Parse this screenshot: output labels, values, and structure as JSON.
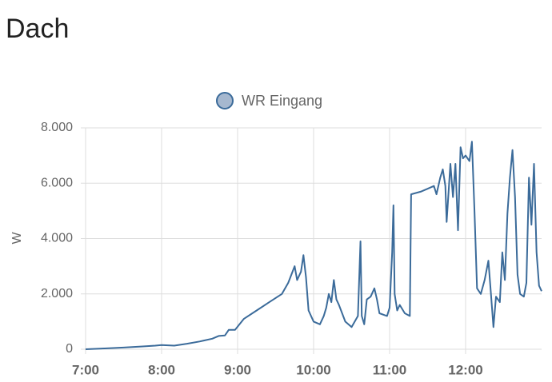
{
  "header": {
    "title": "Dach"
  },
  "chart_data": {
    "type": "line",
    "y_label": "W",
    "x": [
      "7:00",
      "7:15",
      "7:30",
      "7:45",
      "7:55",
      "8:00",
      "8:10",
      "8:20",
      "8:30",
      "8:40",
      "8:45",
      "8:50",
      "8:53",
      "8:58",
      "9:05",
      "9:15",
      "9:25",
      "9:35",
      "9:40",
      "9:45",
      "9:47",
      "9:50",
      "9:52",
      "9:54",
      "9:56",
      "10:00",
      "10:05",
      "10:08",
      "10:10",
      "10:12",
      "10:14",
      "10:16",
      "10:18",
      "10:20",
      "10:25",
      "10:30",
      "10:35",
      "10:37",
      "10:38",
      "10:40",
      "10:42",
      "10:45",
      "10:48",
      "10:50",
      "10:52",
      "10:58",
      "11:00",
      "11:02",
      "11:03",
      "11:04",
      "11:06",
      "11:08",
      "11:12",
      "11:16",
      "11:17",
      "11:25",
      "11:30",
      "11:35",
      "11:37",
      "11:40",
      "11:42",
      "11:44",
      "11:45",
      "11:48",
      "11:50",
      "11:52",
      "11:54",
      "11:56",
      "11:58",
      "12:00",
      "12:03",
      "12:05",
      "12:07",
      "12:09",
      "12:12",
      "12:15",
      "12:18",
      "12:20",
      "12:22",
      "12:24",
      "12:27",
      "12:29",
      "12:31",
      "12:33",
      "12:35",
      "12:37",
      "12:39",
      "12:41",
      "12:43",
      "12:46",
      "12:48",
      "12:50",
      "12:52",
      "12:54",
      "12:56",
      "12:58",
      "13:00"
    ],
    "series": [
      {
        "name": "WR Eingang",
        "color": "#3b6b9a",
        "values": [
          0,
          30,
          60,
          100,
          130,
          150,
          130,
          200,
          280,
          380,
          480,
          500,
          700,
          700,
          1100,
          1400,
          1700,
          2000,
          2400,
          3000,
          2500,
          2800,
          3400,
          2600,
          1400,
          1000,
          900,
          1200,
          1500,
          2000,
          1700,
          2500,
          1800,
          1600,
          1000,
          800,
          1200,
          3900,
          1200,
          900,
          1800,
          1900,
          2200,
          1800,
          1300,
          1200,
          1500,
          3500,
          5200,
          2000,
          1400,
          1600,
          1300,
          1200,
          5600,
          5700,
          5800,
          5900,
          5600,
          6200,
          6500,
          5900,
          4600,
          6700,
          5500,
          6700,
          4300,
          7300,
          6900,
          7000,
          6800,
          7500,
          5000,
          2200,
          2000,
          2500,
          3200,
          2000,
          800,
          1900,
          1700,
          3500,
          2500,
          4900,
          6200,
          7200,
          5500,
          2700,
          2000,
          1900,
          2400,
          6200,
          4500,
          6700,
          3500,
          2300,
          2100
        ]
      }
    ],
    "xlim": [
      "7:00",
      "13:00"
    ],
    "xticks": [
      "7:00",
      "8:00",
      "9:00",
      "10:00",
      "11:00",
      "12:00"
    ],
    "ylim": [
      0,
      8000
    ],
    "yticks": [
      0,
      {
        "value": 2000,
        "label": "2.000"
      },
      {
        "value": 4000,
        "label": "4.000"
      },
      {
        "value": 6000,
        "label": "6.000"
      },
      {
        "value": 8000,
        "label": "8.000"
      }
    ],
    "grid": true
  }
}
